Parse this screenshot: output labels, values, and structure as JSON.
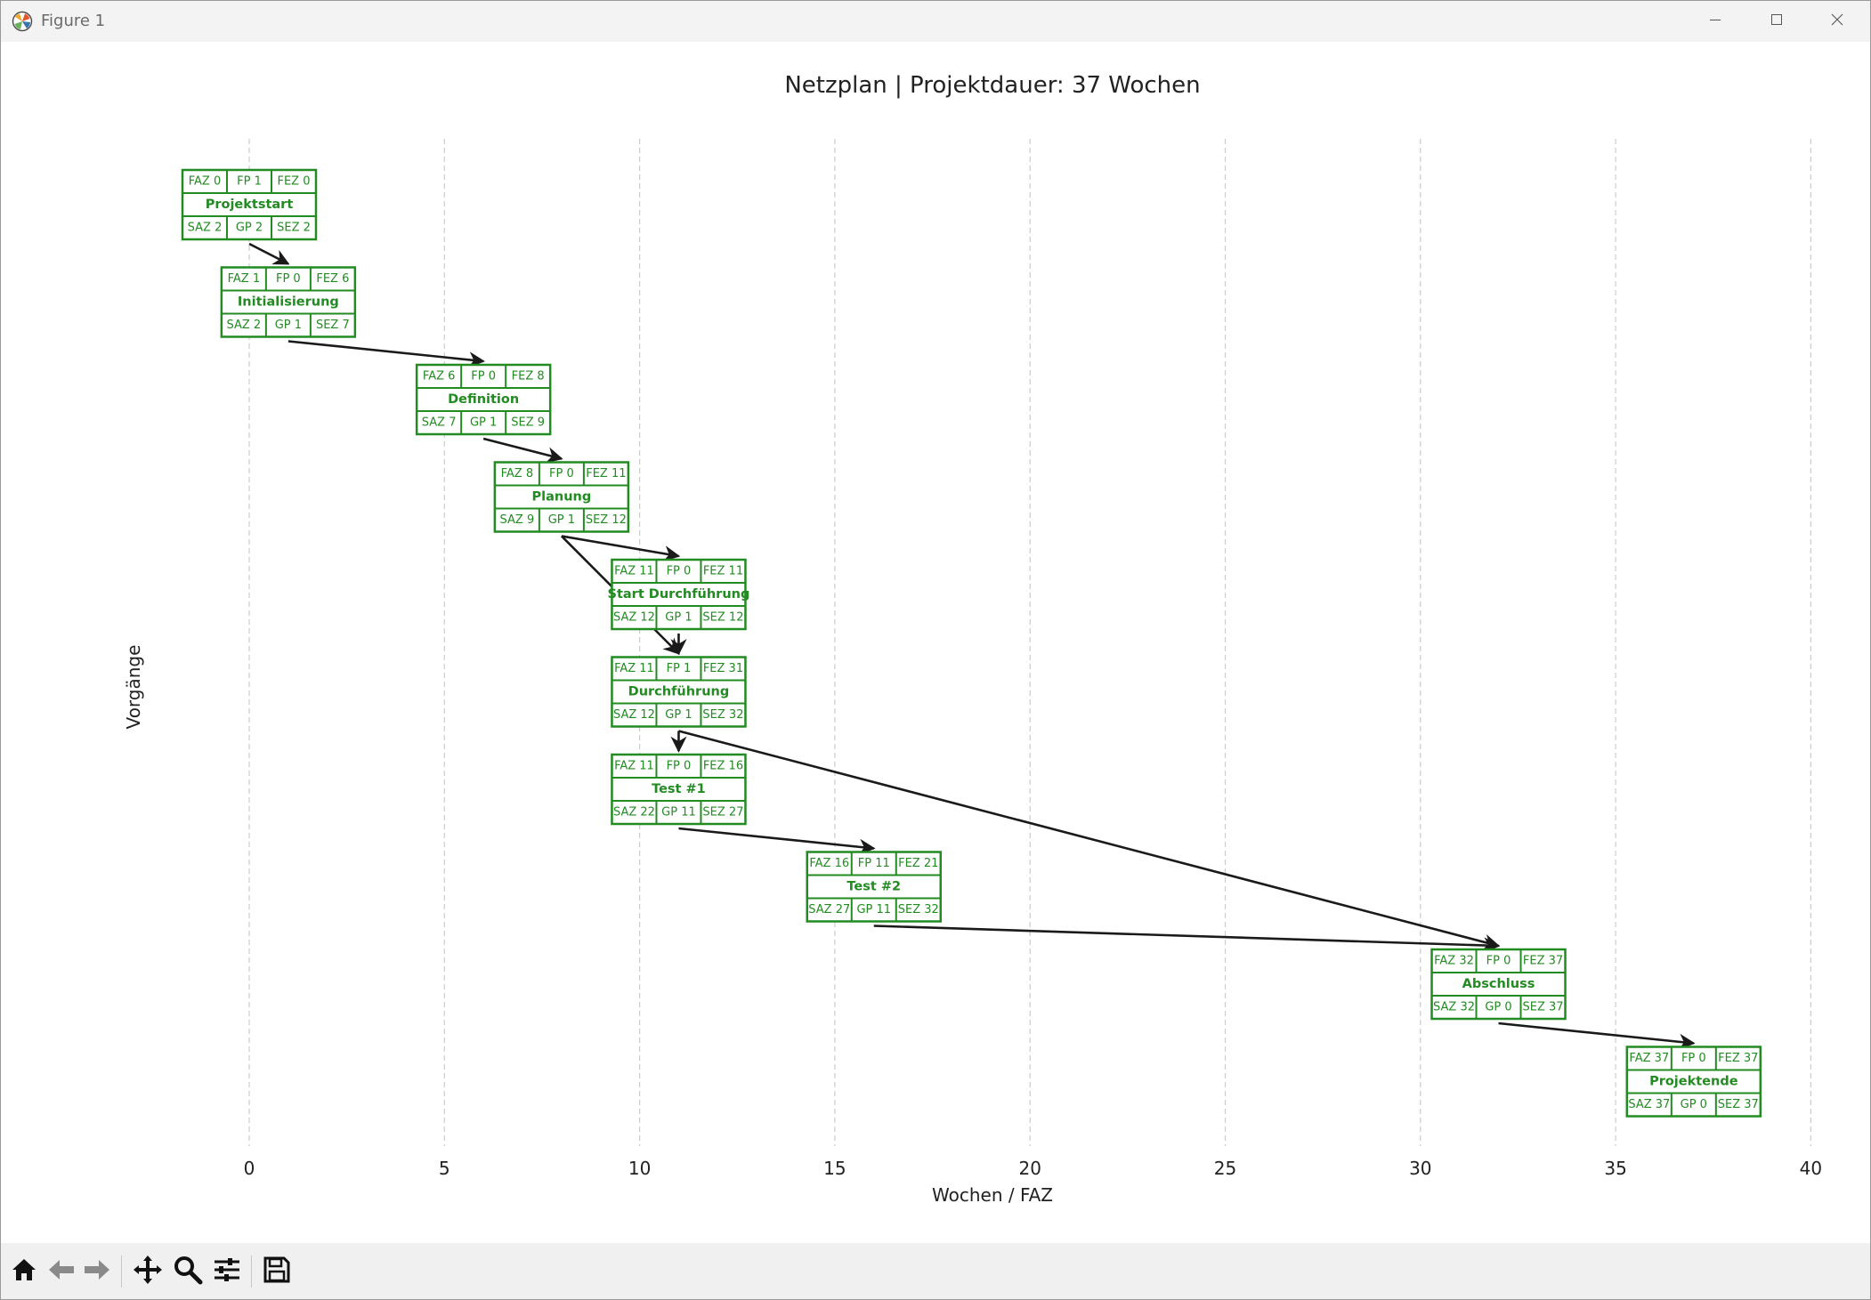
{
  "window": {
    "title": "Figure 1"
  },
  "colors": {
    "box": "#228b22",
    "arrow": "#1a1a1a",
    "grid": "#cccccc",
    "axis_text": "#222222"
  },
  "icons": {
    "app": "matplotlib-icon",
    "minimize": "minimize-icon",
    "maximize": "maximize-icon",
    "close": "close-icon",
    "toolbar": [
      "home-icon",
      "back-arrow-icon",
      "forward-arrow-icon",
      "pan-icon",
      "zoom-icon",
      "configure-subplots-icon",
      "save-icon"
    ]
  },
  "chart_data": {
    "type": "network-diagram",
    "title": "Netzplan | Projektdauer: 37 Wochen",
    "xlabel": "Wochen / FAZ",
    "ylabel": "Vorgänge",
    "xlim": [
      -4.3,
      41
    ],
    "x_ticks": [
      0,
      5,
      10,
      15,
      20,
      25,
      30,
      35,
      40
    ],
    "grid": "vertical dashed",
    "nodes": [
      {
        "id": "projektstart",
        "name": "Projektstart",
        "faz": 0,
        "fp": 1,
        "fez": 0,
        "saz": 2,
        "gp": 2,
        "sez": 2,
        "x": 0,
        "row": 0
      },
      {
        "id": "initialisierung",
        "name": "Initialisierung",
        "faz": 1,
        "fp": 0,
        "fez": 6,
        "saz": 2,
        "gp": 1,
        "sez": 7,
        "x": 1,
        "row": 1
      },
      {
        "id": "definition",
        "name": "Definition",
        "faz": 6,
        "fp": 0,
        "fez": 8,
        "saz": 7,
        "gp": 1,
        "sez": 9,
        "x": 6,
        "row": 2
      },
      {
        "id": "planung",
        "name": "Planung",
        "faz": 8,
        "fp": 0,
        "fez": 11,
        "saz": 9,
        "gp": 1,
        "sez": 12,
        "x": 8,
        "row": 3
      },
      {
        "id": "start-durchfuehrung",
        "name": "Start Durchführung",
        "faz": 11,
        "fp": 0,
        "fez": 11,
        "saz": 12,
        "gp": 1,
        "sez": 12,
        "x": 11,
        "row": 4
      },
      {
        "id": "durchfuehrung",
        "name": "Durchführung",
        "faz": 11,
        "fp": 1,
        "fez": 31,
        "saz": 12,
        "gp": 1,
        "sez": 32,
        "x": 11,
        "row": 5
      },
      {
        "id": "test1",
        "name": "Test #1",
        "faz": 11,
        "fp": 0,
        "fez": 16,
        "saz": 22,
        "gp": 11,
        "sez": 27,
        "x": 11,
        "row": 6
      },
      {
        "id": "test2",
        "name": "Test #2",
        "faz": 16,
        "fp": 11,
        "fez": 21,
        "saz": 27,
        "gp": 11,
        "sez": 32,
        "x": 16,
        "row": 7
      },
      {
        "id": "abschluss",
        "name": "Abschluss",
        "faz": 32,
        "fp": 0,
        "fez": 37,
        "saz": 32,
        "gp": 0,
        "sez": 37,
        "x": 32,
        "row": 8
      },
      {
        "id": "projektende",
        "name": "Projektende",
        "faz": 37,
        "fp": 0,
        "fez": 37,
        "saz": 37,
        "gp": 0,
        "sez": 37,
        "x": 37,
        "row": 9
      }
    ],
    "edges": [
      [
        "projektstart",
        "initialisierung"
      ],
      [
        "initialisierung",
        "definition"
      ],
      [
        "definition",
        "planung"
      ],
      [
        "planung",
        "start-durchfuehrung"
      ],
      [
        "planung",
        "durchfuehrung"
      ],
      [
        "start-durchfuehrung",
        "durchfuehrung"
      ],
      [
        "durchfuehrung",
        "test1"
      ],
      [
        "durchfuehrung",
        "abschluss"
      ],
      [
        "test1",
        "test2"
      ],
      [
        "test2",
        "abschluss"
      ],
      [
        "abschluss",
        "projektende"
      ]
    ]
  }
}
